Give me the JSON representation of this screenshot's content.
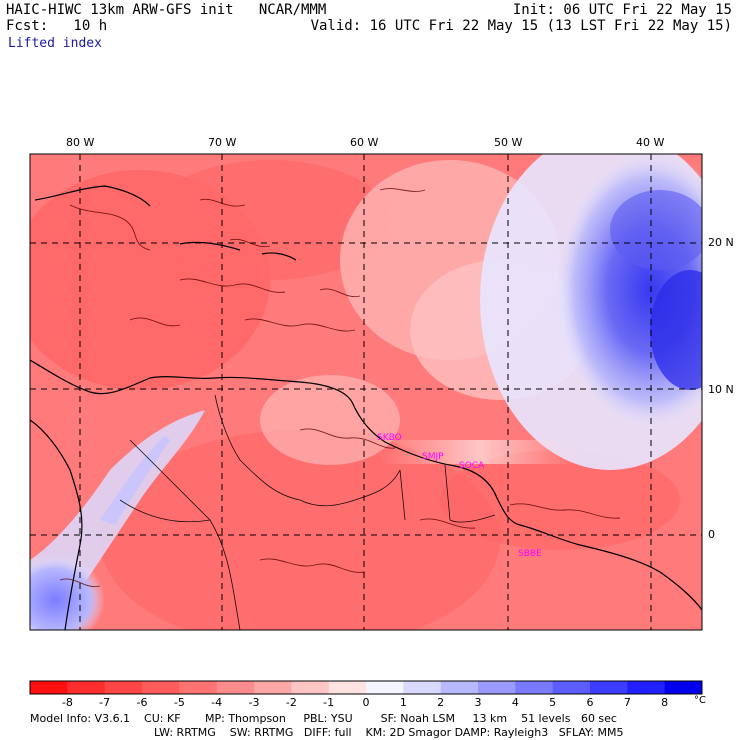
{
  "header": {
    "title_left": "HAIC-HIWC 13km ARW-GFS init   NCAR/MMM",
    "init": "Init: 06 UTC Fri 22 May 15",
    "fcst": "Fcst:   10 h",
    "valid": "Valid: 16 UTC Fri 22 May 15 (13 LST Fri 22 May 15)",
    "field": "Lifted index"
  },
  "map": {
    "lon_labels": [
      "80 W",
      "70 W",
      "60 W",
      "50 W",
      "40 W"
    ],
    "lat_labels": [
      "20 N",
      "10 N",
      "0"
    ],
    "stations": [
      "SKBO",
      "SMJP",
      "SOCA",
      "SBBE"
    ],
    "colors": {
      "land_outline": "#000000",
      "contour": "#5a0000",
      "grid": "#000000",
      "station_text": "#ff00ff"
    }
  },
  "colorbar": {
    "tick_labels": [
      "-8",
      "-7",
      "-6",
      "-5",
      "-4",
      "-3",
      "-2",
      "-1",
      "0",
      "1",
      "2",
      "3",
      "4",
      "5",
      "6",
      "7",
      "8"
    ],
    "unit": "°C",
    "colors": [
      "#ff1010",
      "#ff2e2e",
      "#ff4545",
      "#ff5c5c",
      "#ff7373",
      "#ff8c8c",
      "#ffa6a6",
      "#ffc4c4",
      "#ffe3e3",
      "#f5f5ff",
      "#d9d9ff",
      "#b8b8ff",
      "#9a9aff",
      "#7a7aff",
      "#5c5cff",
      "#3d3dff",
      "#1f1fff",
      "#0000ee"
    ]
  },
  "footer": {
    "line1": "Model Info: V3.6.1    CU: KF       MP: Thompson     PBL: YSU        SF: Noah LSM     13 km    51 levels   60 sec",
    "line2": "LW: RRTMG    SW: RRTMG   DIFF: full    KM: 2D Smagor DAMP: Rayleigh3   SFLAY: MM5"
  }
}
